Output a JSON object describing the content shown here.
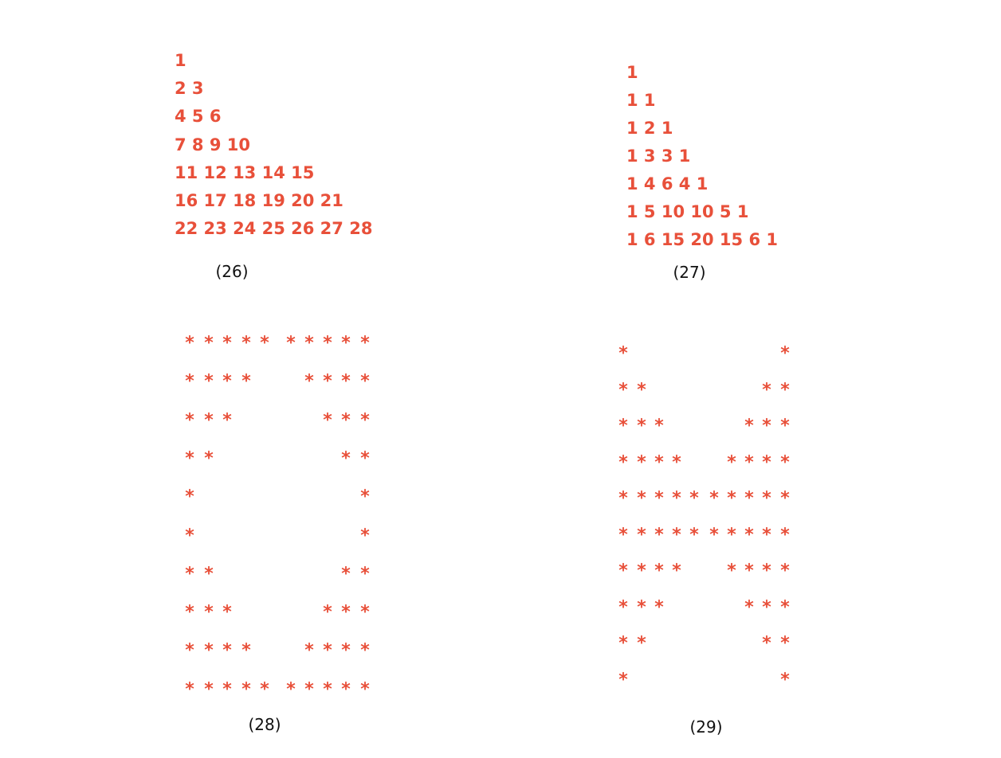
{
  "pattern_26": {
    "caption": "(26)",
    "rows": [
      "1",
      "2 3",
      "4 5 6",
      "7 8 9 10",
      "11 12 13 14 15",
      "16 17 18 19 20 21",
      "22 23 24 25 26 27 28"
    ]
  },
  "pattern_27": {
    "caption": "(27)",
    "rows": [
      "1",
      "1 1",
      "1 2 1",
      "1 3 3 1",
      "1 4 6 4 1",
      "1 5 10 10 5 1",
      "1 6 15 20 15 6 1"
    ]
  },
  "pattern_28": {
    "caption": "(28)",
    "symbol": "*",
    "rows": [
      "***** *****",
      "****   ****",
      "***     ***",
      "**       **",
      "*         *",
      "*         *",
      "**       **",
      "***     ***",
      "****   ****",
      "***** *****"
    ]
  },
  "pattern_29": {
    "caption": "(29)",
    "symbol": "*",
    "rows": [
      "*         *",
      "**       **",
      "***     ***",
      "****   ****",
      "***********",
      "***********",
      "****   ****",
      "***     ***",
      "**       **",
      "*         *"
    ]
  },
  "colors": {
    "pattern": "#e8503a",
    "caption": "#111111"
  }
}
